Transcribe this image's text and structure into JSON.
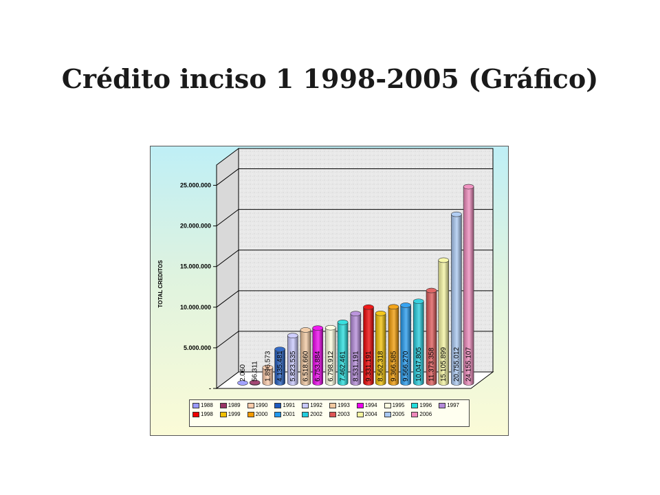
{
  "slide": {
    "title": "Crédito inciso 1 1998-2005 (Gráfico)"
  },
  "chart_data": {
    "type": "bar",
    "title": "",
    "xlabel": "",
    "ylabel": "TOTAL CREDITOS",
    "ylim": [
      0,
      27500000
    ],
    "yticks": [
      {
        "value": 0,
        "label": "-"
      },
      {
        "value": 5000000,
        "label": "5.000.000"
      },
      {
        "value": 10000000,
        "label": "10.000.000"
      },
      {
        "value": 15000000,
        "label": "15.000.000"
      },
      {
        "value": 20000000,
        "label": "20.000.000"
      },
      {
        "value": 25000000,
        "label": "25.000.000"
      }
    ],
    "grid": true,
    "legend_position": "bottom",
    "series": [
      {
        "name": "1988",
        "value": 2060,
        "label": "2.060",
        "color": "#9999ff"
      },
      {
        "name": "1989",
        "value": 56311,
        "label": "56.311",
        "color": "#993366"
      },
      {
        "name": "1990",
        "value": 1896573,
        "label": "1.896.573",
        "color": "#ffccaa"
      },
      {
        "name": "1991",
        "value": 4135481,
        "label": "4.135.481",
        "color": "#1f5bbf"
      },
      {
        "name": "1992",
        "value": 5823535,
        "label": "5.823.535",
        "color": "#c8c8ff"
      },
      {
        "name": "1993",
        "value": 6518660,
        "label": "6.518.660",
        "color": "#f2c8a0"
      },
      {
        "name": "1994",
        "value": 6753884,
        "label": "6.753.884",
        "color": "#ee00ee"
      },
      {
        "name": "1995",
        "value": 6798912,
        "label": "6.798.912",
        "color": "#ffffe0"
      },
      {
        "name": "1996",
        "value": 7462461,
        "label": "7.462.461",
        "color": "#22dddd"
      },
      {
        "name": "1997",
        "value": 8531191,
        "label": "8.531.191",
        "color": "#b48ad9"
      },
      {
        "name": "1998",
        "value": 9331191,
        "label": "9.331.191",
        "color": "#ee0000"
      },
      {
        "name": "1999",
        "value": 8562318,
        "label": "8.562.318",
        "color": "#f2c000"
      },
      {
        "name": "2000",
        "value": 9366585,
        "label": "9.366.585",
        "color": "#f29a00"
      },
      {
        "name": "2001",
        "value": 9566270,
        "label": "9.566.270",
        "color": "#2299ee"
      },
      {
        "name": "2002",
        "value": 10047805,
        "label": "10.047.805",
        "color": "#22ccdd"
      },
      {
        "name": "2003",
        "value": 11373358,
        "label": "11.373.358",
        "color": "#dd5555"
      },
      {
        "name": "2004",
        "value": 15105899,
        "label": "15.105.899",
        "color": "#f6f6a0"
      },
      {
        "name": "2005",
        "value": 20755012,
        "label": "20.755.012",
        "color": "#a9c8f2"
      },
      {
        "name": "2006",
        "value": 24155107,
        "label": "24.155.107",
        "color": "#ee88bb"
      }
    ]
  }
}
